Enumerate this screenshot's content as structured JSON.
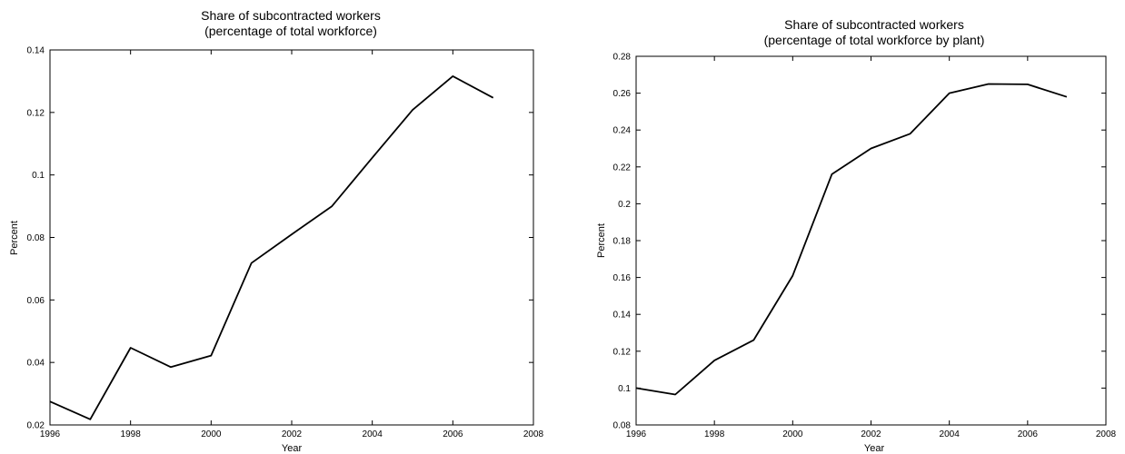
{
  "chart_data": [
    {
      "type": "line",
      "title_line1": "Share of subcontracted workers",
      "title_line2": "(percentage of total workforce)",
      "xlabel": "Year",
      "ylabel": "Percent",
      "xlim": [
        1996,
        2008
      ],
      "ylim": [
        0.02,
        0.14
      ],
      "x_ticks": [
        1996,
        1998,
        2000,
        2002,
        2004,
        2006,
        2008
      ],
      "y_ticks": [
        0.02,
        0.04,
        0.06,
        0.08,
        0.1,
        0.12,
        0.14
      ],
      "series": [
        {
          "x": [
            1996,
            1997,
            1998,
            1999,
            2000,
            2001,
            2002,
            2003,
            2004,
            2005,
            2006,
            2007
          ],
          "values": [
            0.0275,
            0.0218,
            0.0447,
            0.0385,
            0.0422,
            0.0718,
            0.081,
            0.09,
            0.1055,
            0.1208,
            0.1316,
            0.1247
          ]
        }
      ],
      "grid": false,
      "line_color": "#000000"
    },
    {
      "type": "line",
      "title_line1": "Share of subcontracted workers",
      "title_line2": "(percentage of total workforce by plant)",
      "xlabel": "Year",
      "ylabel": "Percent",
      "xlim": [
        1996,
        2008
      ],
      "ylim": [
        0.08,
        0.28
      ],
      "x_ticks": [
        1996,
        1998,
        2000,
        2002,
        2004,
        2006,
        2008
      ],
      "y_ticks": [
        0.08,
        0.1,
        0.12,
        0.14,
        0.16,
        0.18,
        0.2,
        0.22,
        0.24,
        0.26,
        0.28
      ],
      "series": [
        {
          "x": [
            1996,
            1997,
            1998,
            1999,
            2000,
            2001,
            2002,
            2003,
            2004,
            2005,
            2006,
            2007
          ],
          "values": [
            0.1,
            0.0965,
            0.115,
            0.126,
            0.161,
            0.216,
            0.23,
            0.238,
            0.26,
            0.265,
            0.2648,
            0.258
          ]
        }
      ],
      "grid": false,
      "line_color": "#000000"
    }
  ]
}
